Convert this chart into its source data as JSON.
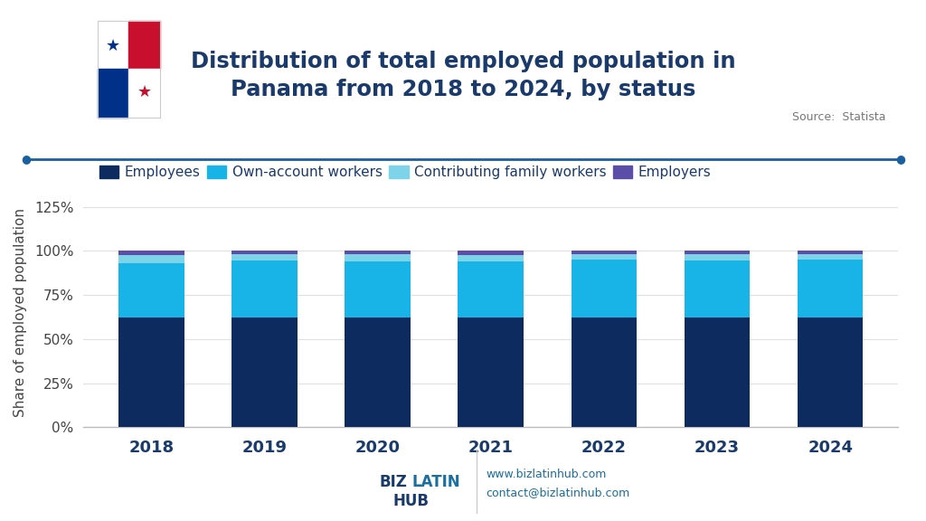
{
  "years": [
    "2018",
    "2019",
    "2020",
    "2021",
    "2022",
    "2023",
    "2024"
  ],
  "employees": [
    62.0,
    62.0,
    62.0,
    62.0,
    62.0,
    62.0,
    62.0
  ],
  "own_account": [
    31.0,
    32.5,
    32.0,
    32.0,
    33.0,
    32.5,
    33.0
  ],
  "family": [
    4.5,
    3.5,
    4.0,
    3.5,
    3.0,
    3.5,
    3.0
  ],
  "employers": [
    2.5,
    2.0,
    2.0,
    2.5,
    2.0,
    2.0,
    2.0
  ],
  "colors": {
    "employees": "#0d2b5e",
    "own_account": "#18b4e8",
    "family": "#7dd4e8",
    "employers": "#5b4ea8"
  },
  "legend_labels": [
    "Employees",
    "Own-account workers",
    "Contributing family workers",
    "Employers"
  ],
  "ylabel": "Share of employed population",
  "yticks": [
    0,
    25,
    50,
    75,
    100,
    125
  ],
  "ytick_labels": [
    "0%",
    "25%",
    "50%",
    "75%",
    "100%",
    "125%"
  ],
  "ylim": [
    0,
    130
  ],
  "title_text": "Distribution of total employed population in\nPanama from 2018 to 2024, by status",
  "source": "Source:  Statista",
  "background_color": "#ffffff",
  "bar_width": 0.58,
  "separator_line_color": "#1a5fa0",
  "title_color": "#1a3a6c",
  "flag_white": "#ffffff",
  "flag_red": "#c8102e",
  "flag_blue": "#003087",
  "footer_blue": "#1a6ea0",
  "footer_dark": "#1a3a6c"
}
